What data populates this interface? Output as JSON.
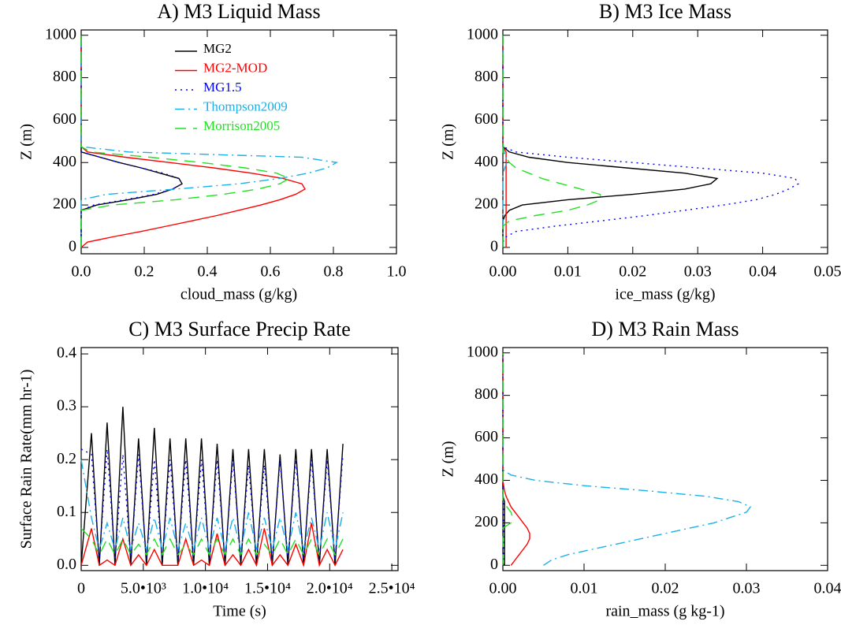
{
  "chart_data": [
    {
      "type": "profile",
      "title": "A)  M3 Liquid Mass",
      "x_label": "cloud_mass (g/kg)",
      "y_label": "Z (m)",
      "xlim": [
        0,
        1.0
      ],
      "ylim": [
        -30,
        1025
      ],
      "xticks": [
        {
          "value": 0,
          "label": "0.0"
        },
        0.2,
        0.4,
        0.6,
        0.8,
        {
          "value": 1,
          "label": "1.0"
        }
      ],
      "yticks": [
        0,
        200,
        400,
        600,
        800,
        1000
      ],
      "legend": true,
      "y": [
        0,
        25,
        50,
        75,
        100,
        125,
        150,
        175,
        200,
        225,
        250,
        275,
        300,
        325,
        350,
        375,
        400,
        425,
        450,
        475,
        500,
        600,
        700,
        800,
        900,
        1000
      ],
      "series": [
        {
          "name": "MG2",
          "color": "#000000",
          "dash": "solid",
          "values": [
            0,
            0,
            0,
            0,
            0,
            0,
            0,
            0,
            0.05,
            0.15,
            0.24,
            0.29,
            0.32,
            0.31,
            0.25,
            0.19,
            0.12,
            0.06,
            0,
            0,
            0,
            0,
            0,
            0,
            0,
            0
          ]
        },
        {
          "name": "MG2-MOD",
          "color": "#ff0000",
          "dash": "solid",
          "values": [
            0,
            0.02,
            0.1,
            0.19,
            0.27,
            0.35,
            0.43,
            0.5,
            0.57,
            0.63,
            0.68,
            0.71,
            0.7,
            0.64,
            0.54,
            0.42,
            0.28,
            0.14,
            0.02,
            0,
            0,
            0,
            0,
            0,
            0,
            0
          ]
        },
        {
          "name": "MG1.5",
          "color": "#0000ff",
          "dash": "dot",
          "values": [
            0,
            0,
            0,
            0,
            0,
            0,
            0,
            0,
            0.04,
            0.14,
            0.23,
            0.29,
            0.32,
            0.31,
            0.26,
            0.19,
            0.12,
            0.06,
            0,
            0,
            0,
            0,
            0,
            0,
            0,
            0
          ]
        },
        {
          "name": "Thompson2009",
          "color": "#1ab0e8",
          "dash": "dashdot",
          "values": [
            0,
            0,
            0,
            0,
            0,
            0,
            0,
            0,
            0,
            0,
            0.08,
            0.3,
            0.5,
            0.63,
            0.72,
            0.78,
            0.81,
            0.7,
            0.15,
            0,
            0,
            0,
            0,
            0,
            0,
            0
          ]
        },
        {
          "name": "Morrison2005",
          "color": "#22e022",
          "dash": "dash",
          "values": [
            0,
            0,
            0,
            0,
            0,
            0,
            0,
            0,
            0.1,
            0.3,
            0.45,
            0.56,
            0.63,
            0.66,
            0.62,
            0.52,
            0.38,
            0.22,
            0.03,
            0,
            0,
            0,
            0,
            0,
            0,
            0
          ]
        }
      ]
    },
    {
      "type": "profile",
      "title": "B)  M3 Ice Mass",
      "x_label": "ice_mass (g/kg)",
      "y_label": "Z (m)",
      "xlim": [
        0,
        0.05
      ],
      "ylim": [
        -30,
        1025
      ],
      "xticks": [
        {
          "value": 0,
          "label": "0.00"
        },
        0.01,
        0.02,
        0.03,
        0.04,
        0.05
      ],
      "yticks": [
        0,
        200,
        400,
        600,
        800,
        1000
      ],
      "y": [
        0,
        25,
        50,
        75,
        100,
        125,
        150,
        175,
        200,
        225,
        250,
        275,
        300,
        325,
        350,
        375,
        400,
        425,
        450,
        475,
        500,
        600,
        700,
        800,
        900,
        1000
      ],
      "series": [
        {
          "color": "#000000",
          "dash": "solid",
          "values": [
            0,
            0,
            0,
            0,
            0,
            0,
            0.0003,
            0.001,
            0.003,
            0.01,
            0.02,
            0.028,
            0.032,
            0.033,
            0.028,
            0.019,
            0.01,
            0.004,
            0.001,
            0,
            0,
            0,
            0,
            0,
            0,
            0
          ]
        },
        {
          "color": "#ff0000",
          "dash": "solid",
          "values": [
            0.0005,
            0.0005,
            0.0005,
            0.0005,
            0.0005,
            0.0005,
            0.0005,
            0.0005,
            0.0005,
            0.0005,
            0.0005,
            0.0005,
            0.0005,
            0.0005,
            0.0005,
            0.0005,
            0.0005,
            0.0005,
            0.0005,
            0,
            0,
            0,
            0,
            0,
            0,
            0
          ]
        },
        {
          "color": "#0000ff",
          "dash": "dot",
          "values": [
            0,
            0,
            0.0005,
            0.002,
            0.008,
            0.015,
            0.022,
            0.028,
            0.034,
            0.039,
            0.042,
            0.044,
            0.0455,
            0.045,
            0.04,
            0.03,
            0.02,
            0.01,
            0.002,
            0,
            0,
            0,
            0,
            0,
            0,
            0
          ]
        },
        {
          "color": "#1ab0e8",
          "dash": "dashdot",
          "values": [
            0,
            0,
            0,
            0,
            0,
            0,
            0,
            0,
            0,
            0,
            0,
            0,
            0,
            0,
            0,
            0.0003,
            0.0006,
            0.0005,
            0.0002,
            0,
            0,
            0,
            0,
            0,
            0,
            0
          ]
        },
        {
          "color": "#22e022",
          "dash": "dash",
          "values": [
            0,
            0,
            0,
            0,
            0,
            0.001,
            0.005,
            0.01,
            0.013,
            0.015,
            0.015,
            0.012,
            0.009,
            0.006,
            0.004,
            0.002,
            0.001,
            0.0005,
            0,
            0,
            0,
            0,
            0,
            0,
            0,
            0
          ]
        }
      ]
    },
    {
      "type": "line",
      "title": "C)  M3 Surface Precip Rate",
      "x_label": "Time (s)",
      "y_label": "Surface Rain Rate(mm hr-1)",
      "xlim": [
        0,
        25500
      ],
      "ylim": [
        -0.01,
        0.412
      ],
      "xticks": [
        0,
        {
          "value": 5000,
          "label": "5.0•10³"
        },
        {
          "value": 10000,
          "label": "1.0•10⁴"
        },
        {
          "value": 15000,
          "label": "1.5•10⁴"
        },
        {
          "value": 20000,
          "label": "2.0•10⁴"
        },
        {
          "value": 25000,
          "label": "2.5•10⁴"
        }
      ],
      "yticks": [
        {
          "value": 0,
          "label": "0.0"
        },
        0.1,
        0.2,
        0.3,
        0.4
      ],
      "x": [
        0,
        825,
        1458,
        2090,
        2723,
        3355,
        3988,
        4620,
        5253,
        5885,
        6518,
        7150,
        7783,
        8415,
        9048,
        9680,
        10313,
        10945,
        11578,
        12210,
        12843,
        13475,
        14108,
        14740,
        15373,
        16005,
        16638,
        17270,
        17903,
        18535,
        19168,
        19800,
        20433,
        21065
      ],
      "series": [
        {
          "color": "#000000",
          "dash": "solid",
          "values": [
            0,
            0.25,
            0,
            0.27,
            0,
            0.3,
            0,
            0.24,
            0,
            0.26,
            0,
            0.24,
            0,
            0.24,
            0,
            0.24,
            0,
            0.23,
            0,
            0.22,
            0,
            0.22,
            0,
            0.22,
            0,
            0.21,
            0,
            0.22,
            0,
            0.22,
            0,
            0.22,
            0,
            0.23
          ]
        },
        {
          "color": "#ff0000",
          "dash": "solid",
          "values": [
            0,
            0.07,
            0,
            0.01,
            0,
            0.05,
            0,
            0.02,
            0,
            0.03,
            0,
            0.0,
            0,
            0.05,
            0,
            0.01,
            0,
            0.06,
            0,
            0.02,
            0,
            0.03,
            0,
            0.07,
            0,
            0.02,
            0,
            0.04,
            0,
            0.08,
            0,
            0.03,
            0,
            0.03
          ]
        },
        {
          "color": "#0000ff",
          "dash": "dot",
          "values": [
            0.22,
            0.21,
            0.01,
            0.22,
            0.01,
            0.21,
            0.01,
            0.21,
            0.01,
            0.2,
            0.01,
            0.2,
            0.01,
            0.2,
            0.01,
            0.2,
            0.01,
            0.2,
            0.01,
            0.2,
            0.01,
            0.19,
            0.01,
            0.19,
            0.01,
            0.2,
            0.01,
            0.2,
            0.01,
            0.2,
            0.01,
            0.2,
            0.01,
            0.21
          ]
        },
        {
          "color": "#1ab0e8",
          "dash": "dashdot",
          "values": [
            0.2,
            0.09,
            0.03,
            0.08,
            0.03,
            0.09,
            0.03,
            0.08,
            0.03,
            0.09,
            0.03,
            0.09,
            0.03,
            0.08,
            0.03,
            0.09,
            0.03,
            0.09,
            0.03,
            0.09,
            0.03,
            0.1,
            0.03,
            0.09,
            0.03,
            0.09,
            0.03,
            0.1,
            0.03,
            0.09,
            0.03,
            0.1,
            0.03,
            0.1
          ]
        },
        {
          "color": "#22e022",
          "dash": "dash",
          "values": [
            0.07,
            0.05,
            0.02,
            0.05,
            0.02,
            0.05,
            0.02,
            0.04,
            0.02,
            0.05,
            0.02,
            0.05,
            0.02,
            0.04,
            0.02,
            0.05,
            0.02,
            0.05,
            0.02,
            0.05,
            0.02,
            0.05,
            0.02,
            0.04,
            0.02,
            0.05,
            0.02,
            0.05,
            0.02,
            0.05,
            0.02,
            0.05,
            0.02,
            0.05
          ]
        }
      ]
    },
    {
      "type": "profile",
      "title": "D)  M3 Rain Mass",
      "x_label": "rain_mass (g kg-1)",
      "y_label": "Z (m)",
      "xlim": [
        0,
        0.04
      ],
      "ylim": [
        -25,
        1025
      ],
      "xticks": [
        {
          "value": 0,
          "label": "0.00"
        },
        0.01,
        0.02,
        0.03,
        0.04
      ],
      "yticks": [
        0,
        200,
        400,
        600,
        800,
        1000
      ],
      "y": [
        0,
        25,
        50,
        75,
        100,
        125,
        150,
        175,
        200,
        225,
        250,
        275,
        300,
        325,
        350,
        375,
        400,
        425,
        450,
        475,
        500,
        600,
        700,
        800,
        900,
        1000
      ],
      "series": [
        {
          "color": "#000000",
          "dash": "solid",
          "values": [
            0.0002,
            0.0002,
            0.0002,
            0.0002,
            0.0002,
            0.0002,
            0.0002,
            0.0002,
            0.0002,
            0.0002,
            0.0002,
            0.0002,
            0.0002,
            0,
            0,
            0,
            0,
            0,
            0,
            0,
            0,
            0,
            0,
            0,
            0,
            0
          ]
        },
        {
          "color": "#ff0000",
          "dash": "solid",
          "values": [
            0.001,
            0.0015,
            0.002,
            0.0025,
            0.003,
            0.0033,
            0.0033,
            0.003,
            0.0025,
            0.002,
            0.0015,
            0.001,
            0.0007,
            0.0004,
            0.0002,
            0.0001,
            0,
            0,
            0,
            0,
            0,
            0,
            0,
            0,
            0,
            0
          ]
        },
        {
          "color": "#0000ff",
          "dash": "dot",
          "values": [
            0.0001,
            0.0001,
            0.0001,
            0.0001,
            0.0001,
            0.0001,
            0.0001,
            0.0001,
            0.0001,
            0.0001,
            0.0001,
            0.0001,
            0.0001,
            0,
            0,
            0,
            0,
            0,
            0,
            0,
            0,
            0,
            0,
            0,
            0,
            0
          ]
        },
        {
          "color": "#1ab0e8",
          "dash": "dashdot",
          "values": [
            0.005,
            0.006,
            0.008,
            0.011,
            0.014,
            0.017,
            0.02,
            0.023,
            0.026,
            0.028,
            0.03,
            0.0305,
            0.029,
            0.025,
            0.018,
            0.01,
            0.004,
            0.001,
            0,
            0,
            0,
            0,
            0,
            0,
            0,
            0
          ]
        },
        {
          "color": "#22e022",
          "dash": "dash",
          "values": [
            0,
            0,
            0,
            0,
            0,
            0,
            0,
            0,
            0.001,
            0.0012,
            0.001,
            0.0005,
            0,
            0,
            0,
            0,
            0,
            0,
            0,
            0,
            0,
            0,
            0,
            0,
            0,
            0
          ]
        }
      ]
    }
  ]
}
